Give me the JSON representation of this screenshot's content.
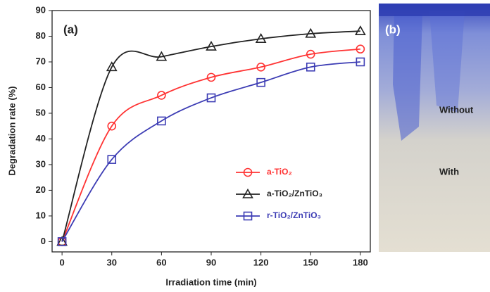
{
  "chart_data": {
    "type": "line",
    "panel_label": "(a)",
    "x_label": "Irradiation time (min)",
    "y_label": "Degradation rate (%)",
    "x": [
      0,
      30,
      60,
      90,
      120,
      150,
      180
    ],
    "series": [
      {
        "name": "a-TiO₂",
        "color": "#ff3333",
        "marker": "circle",
        "values": [
          0,
          45,
          57,
          64,
          68,
          73,
          75
        ]
      },
      {
        "name": "a-TiO₂/ZnTiO₃",
        "color": "#222222",
        "marker": "triangle",
        "values": [
          0,
          68,
          72,
          76,
          79,
          81,
          82
        ]
      },
      {
        "name": "r-TiO₂/ZnTiO₃",
        "color": "#3c3cb4",
        "marker": "square",
        "values": [
          0,
          32,
          47,
          56,
          62,
          68,
          70
        ]
      }
    ],
    "xlim": [
      -6,
      186
    ],
    "xticks": [
      0,
      30,
      60,
      90,
      120,
      150,
      180
    ],
    "ylim": [
      -4,
      90
    ],
    "yticks": [
      0,
      10,
      20,
      30,
      40,
      50,
      60,
      70,
      80,
      90
    ],
    "legend": "lower right"
  },
  "photo": {
    "panel_label": "(b)",
    "labels": [
      "Without",
      "With"
    ]
  }
}
